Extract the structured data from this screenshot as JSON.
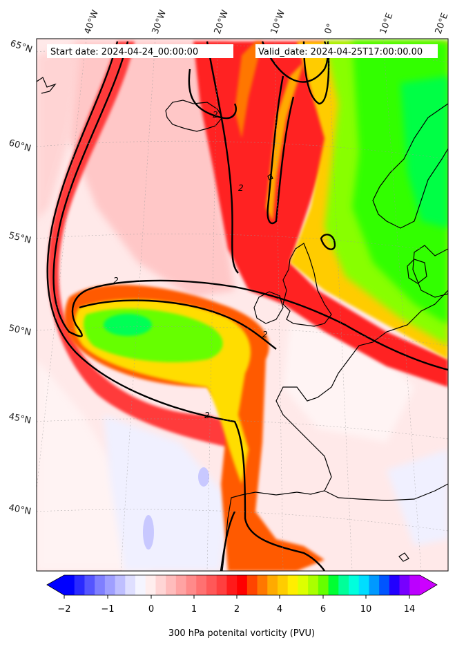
{
  "header": {
    "start_date": "Start date: 2024-04-24_00:00:00",
    "valid_date": "Valid_date: 2024-04-25T17:00:00.00"
  },
  "longitude_labels": [
    "40°W",
    "30°W",
    "20°W",
    "10°W",
    "0°",
    "10°E",
    "20°E"
  ],
  "latitude_labels": [
    "65°N",
    "60°N",
    "55°N",
    "50°N",
    "45°N",
    "40°N"
  ],
  "contour_label": "2",
  "colorbar": {
    "title": "300 hPa potenital vorticity (PVU)",
    "tick_labels": [
      "−2",
      "−1",
      "0",
      "1",
      "2",
      "4",
      "6",
      "10",
      "14"
    ],
    "colors": [
      "#0000ff",
      "#2a2aff",
      "#5555ff",
      "#7f7fff",
      "#9f9fff",
      "#bfbfff",
      "#dfdfff",
      "#f5f5ff",
      "#ffeeee",
      "#ffd5d5",
      "#ffbcbc",
      "#ffa3a3",
      "#ff8a8a",
      "#ff7171",
      "#ff5858",
      "#ff3f3f",
      "#ff1a1a",
      "#ff0000",
      "#ff4400",
      "#ff7700",
      "#ffaa00",
      "#ffcc00",
      "#ffee00",
      "#ddff00",
      "#aaff00",
      "#66ff00",
      "#00ff33",
      "#00ff99",
      "#00ffdd",
      "#00ddff",
      "#0099ff",
      "#0055ff",
      "#2200ff",
      "#7700ff",
      "#bb00ff"
    ],
    "extend_low_color": "#0000ff",
    "extend_high_color": "#cc00ff"
  }
}
